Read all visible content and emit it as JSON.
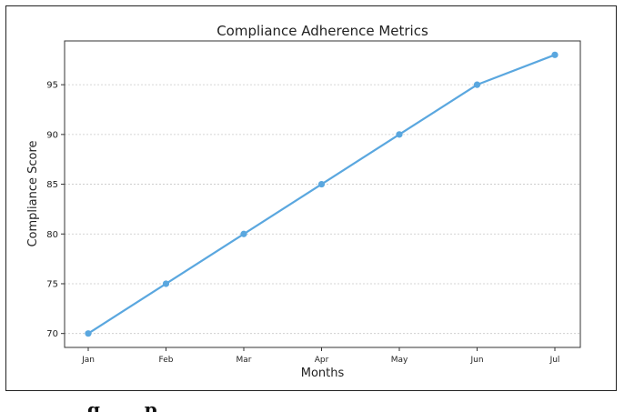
{
  "chart_data": {
    "type": "line",
    "title": "Compliance Adherence Metrics",
    "xlabel": "Months",
    "ylabel": "Compliance Score",
    "categories": [
      "Jan",
      "Feb",
      "Mar",
      "Apr",
      "May",
      "Jun",
      "Jul"
    ],
    "series": [
      {
        "name": "Compliance Score",
        "values": [
          70,
          75,
          80,
          85,
          90,
          95,
          98
        ],
        "color": "#5aa7df"
      }
    ],
    "yticks": [
      70,
      75,
      80,
      85,
      90,
      95
    ],
    "ylim": [
      68.6,
      99.4
    ],
    "grid": true
  },
  "caption": {
    "text": "g       p"
  }
}
